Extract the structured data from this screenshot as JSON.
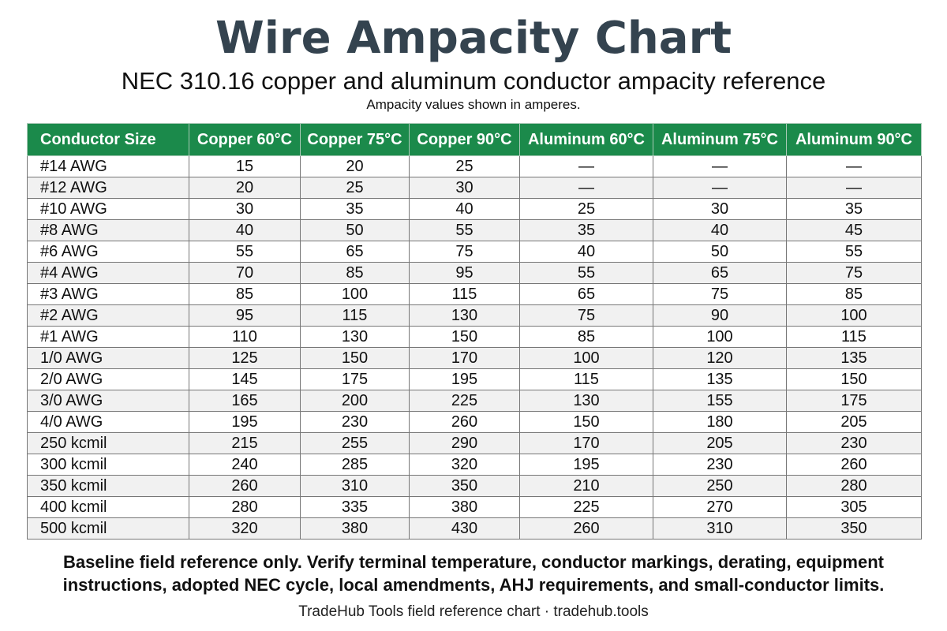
{
  "header": {
    "title": "Wire Ampacity Chart",
    "subtitle": "NEC 310.16 copper and aluminum conductor ampacity reference",
    "note": "Ampacity values shown in amperes."
  },
  "colors": {
    "title": "#34434f",
    "header_fill": "#1b8a4b",
    "row_alt": "#f1f1f1"
  },
  "table": {
    "columns": [
      "Conductor Size",
      "Copper 60°C",
      "Copper 75°C",
      "Copper 90°C",
      "Aluminum 60°C",
      "Aluminum 75°C",
      "Aluminum 90°C"
    ],
    "rows": [
      [
        "#14 AWG",
        "15",
        "20",
        "25",
        "—",
        "—",
        "—"
      ],
      [
        "#12 AWG",
        "20",
        "25",
        "30",
        "—",
        "—",
        "—"
      ],
      [
        "#10 AWG",
        "30",
        "35",
        "40",
        "25",
        "30",
        "35"
      ],
      [
        "#8 AWG",
        "40",
        "50",
        "55",
        "35",
        "40",
        "45"
      ],
      [
        "#6 AWG",
        "55",
        "65",
        "75",
        "40",
        "50",
        "55"
      ],
      [
        "#4 AWG",
        "70",
        "85",
        "95",
        "55",
        "65",
        "75"
      ],
      [
        "#3 AWG",
        "85",
        "100",
        "115",
        "65",
        "75",
        "85"
      ],
      [
        "#2 AWG",
        "95",
        "115",
        "130",
        "75",
        "90",
        "100"
      ],
      [
        "#1 AWG",
        "110",
        "130",
        "150",
        "85",
        "100",
        "115"
      ],
      [
        "1/0 AWG",
        "125",
        "150",
        "170",
        "100",
        "120",
        "135"
      ],
      [
        "2/0 AWG",
        "145",
        "175",
        "195",
        "115",
        "135",
        "150"
      ],
      [
        "3/0 AWG",
        "165",
        "200",
        "225",
        "130",
        "155",
        "175"
      ],
      [
        "4/0 AWG",
        "195",
        "230",
        "260",
        "150",
        "180",
        "205"
      ],
      [
        "250 kcmil",
        "215",
        "255",
        "290",
        "170",
        "205",
        "230"
      ],
      [
        "300 kcmil",
        "240",
        "285",
        "320",
        "195",
        "230",
        "260"
      ],
      [
        "350 kcmil",
        "260",
        "310",
        "350",
        "210",
        "250",
        "280"
      ],
      [
        "400 kcmil",
        "280",
        "335",
        "380",
        "225",
        "270",
        "305"
      ],
      [
        "500 kcmil",
        "320",
        "380",
        "430",
        "260",
        "310",
        "350"
      ]
    ]
  },
  "footer": {
    "disclaimer_line1": "Baseline field reference only. Verify terminal temperature, conductor markings, derating, equipment",
    "disclaimer_line2": "instructions, adopted NEC cycle, local amendments, AHJ requirements, and small-conductor limits.",
    "credit": "TradeHub Tools field reference chart · tradehub.tools"
  }
}
